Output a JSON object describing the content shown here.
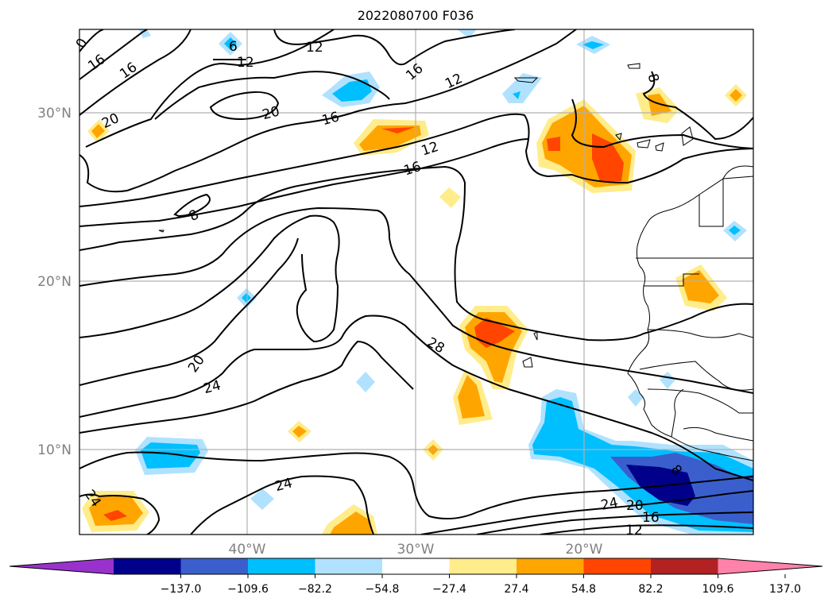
{
  "title": "2022080700 F036",
  "lat_labels": [
    "30°N",
    "20°N",
    "10°N"
  ],
  "lon_labels": [
    "40°W",
    "30°W",
    "20°W"
  ],
  "colorbar": {
    "tick_labels": [
      "−137.0",
      "−109.6",
      "−82.2",
      "−54.8",
      "−27.4",
      "27.4",
      "54.8",
      "82.2",
      "109.6",
      "137.0"
    ],
    "colors": [
      "#9932cc",
      "#00008b",
      "#3a5fcd",
      "#00bfff",
      "#b0e2ff",
      "#ffffff",
      "#ffec8b",
      "#ffa500",
      "#ff4500",
      "#b22222",
      "#ff82ab"
    ]
  },
  "contour_labels": [
    "0",
    "16",
    "16",
    "6",
    "12",
    "12",
    "12",
    "16",
    "20",
    "20",
    "16",
    "12",
    "16",
    "8",
    "8",
    "20",
    "24",
    "28",
    "8",
    "24",
    "24",
    "20",
    "16",
    "12",
    "24"
  ],
  "colors": {
    "pos_light": "#ffec8b",
    "pos_mid": "#ffa500",
    "pos_high": "#ff4500",
    "neg_light": "#b0e2ff",
    "neg_mid": "#00bfff",
    "neg_strong": "#3a5fcd",
    "neg_deep": "#00008b"
  }
}
